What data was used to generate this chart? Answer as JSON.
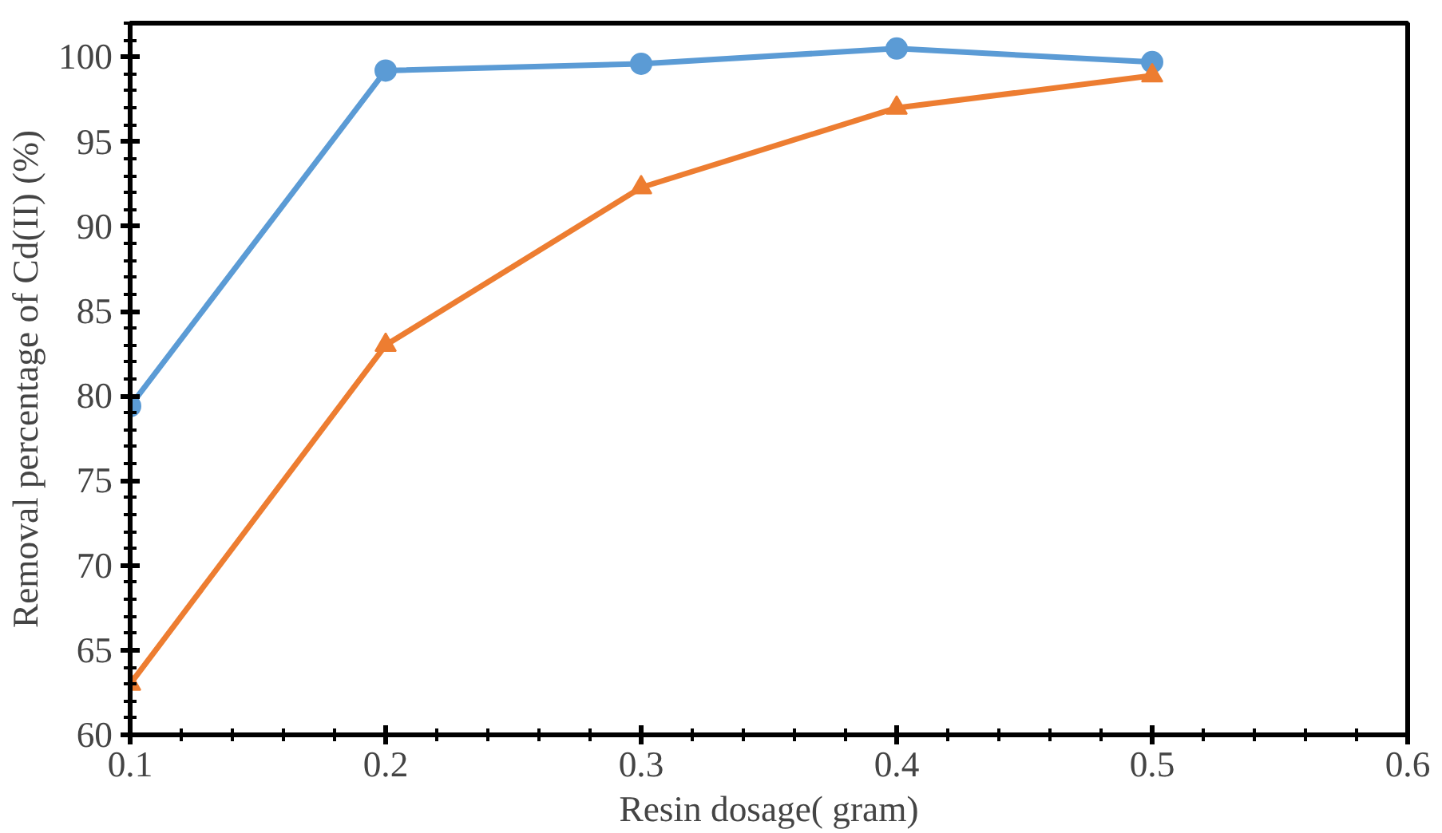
{
  "chart_data": {
    "type": "line",
    "xlabel": "Resin dosage( gram)",
    "ylabel": "Removal percentage of Cd(II) (%)",
    "x": [
      0.1,
      0.2,
      0.3,
      0.4,
      0.5
    ],
    "series": [
      {
        "color": "#5b9bd5",
        "marker": "circle",
        "values": [
          79.4,
          99.2,
          99.6,
          100.5,
          99.7
        ]
      },
      {
        "color": "#ed7d31",
        "marker": "triangle",
        "values": [
          63.0,
          83.0,
          92.3,
          97.0,
          98.9
        ]
      }
    ],
    "xlim": [
      0.1,
      0.6
    ],
    "xticks": [
      0.1,
      0.2,
      0.3,
      0.4,
      0.5,
      0.6
    ],
    "ylim": [
      60,
      102
    ],
    "yticks": [
      60,
      65,
      70,
      75,
      80,
      85,
      90,
      95,
      100
    ],
    "grid": false,
    "line_style": "solid"
  }
}
